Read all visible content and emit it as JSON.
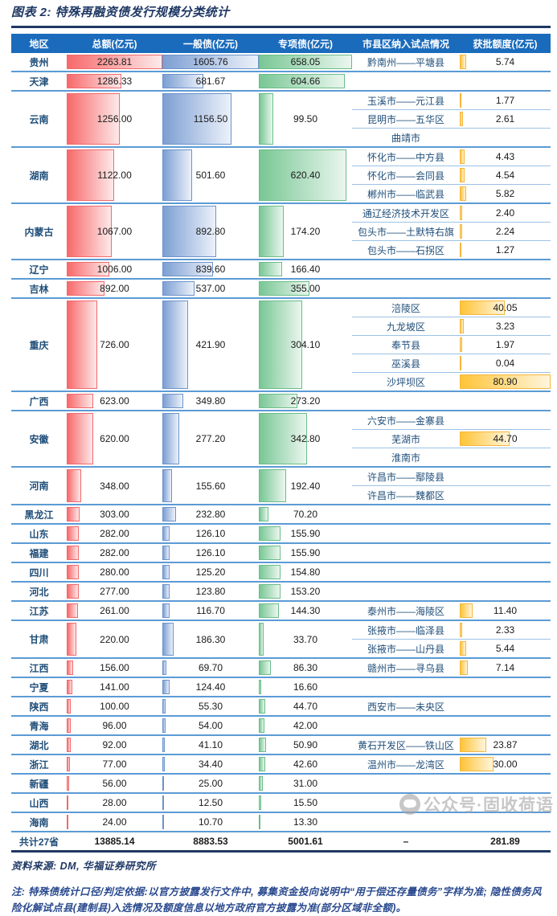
{
  "title": "图表 2: 特殊再融资债发行规模分类统计",
  "chart_data": {
    "type": "table",
    "title": "特殊再融资债发行规模分类统计",
    "columns": [
      "地区",
      "总额(亿元)",
      "一般债(亿元)",
      "专项债(亿元)",
      "市县区纳入试点情况",
      "获批额度(亿元)"
    ],
    "bar_scale_max": {
      "total": 2263.81,
      "general": 1605.76,
      "special": 658.05,
      "quota": 80.9
    },
    "rows": [
      {
        "region": "贵州",
        "total": 2263.81,
        "general": 1605.76,
        "special": 658.05,
        "pilots": [
          {
            "name": "黔南州——平塘县",
            "quota": 5.74
          }
        ]
      },
      {
        "region": "天津",
        "total": 1286.33,
        "general": 681.67,
        "special": 604.66,
        "pilots": []
      },
      {
        "region": "云南",
        "total": 1256.0,
        "general": 1156.5,
        "special": 99.5,
        "pilots": [
          {
            "name": "玉溪市——元江县",
            "quota": 1.77
          },
          {
            "name": "昆明市——五华区",
            "quota": 2.61
          },
          {
            "name": "曲靖市",
            "quota": null
          }
        ]
      },
      {
        "region": "湖南",
        "total": 1122.0,
        "general": 501.6,
        "special": 620.4,
        "pilots": [
          {
            "name": "怀化市——中方县",
            "quota": 4.43
          },
          {
            "name": "怀化市——会同县",
            "quota": 4.54
          },
          {
            "name": "郴州市——临武县",
            "quota": 5.82
          }
        ]
      },
      {
        "region": "内蒙古",
        "total": 1067.0,
        "general": 892.8,
        "special": 174.2,
        "pilots": [
          {
            "name": "通辽经济技术开发区",
            "quota": 2.4
          },
          {
            "name": "包头市——土默特右旗",
            "quota": 2.24
          },
          {
            "name": "包头市——石拐区",
            "quota": 1.27
          }
        ]
      },
      {
        "region": "辽宁",
        "total": 1006.0,
        "general": 839.6,
        "special": 166.4,
        "pilots": []
      },
      {
        "region": "吉林",
        "total": 892.0,
        "general": 537.0,
        "special": 355.0,
        "pilots": []
      },
      {
        "region": "重庆",
        "total": 726.0,
        "general": 421.9,
        "special": 304.1,
        "pilots": [
          {
            "name": "涪陵区",
            "quota": 40.05
          },
          {
            "name": "九龙坡区",
            "quota": 3.23
          },
          {
            "name": "奉节县",
            "quota": 1.97
          },
          {
            "name": "巫溪县",
            "quota": 0.04
          },
          {
            "name": "沙坪坝区",
            "quota": 80.9
          }
        ]
      },
      {
        "region": "广西",
        "total": 623.0,
        "general": 349.8,
        "special": 273.2,
        "pilots": []
      },
      {
        "region": "安徽",
        "total": 620.0,
        "general": 277.2,
        "special": 342.8,
        "pilots": [
          {
            "name": "六安市——金寨县",
            "quota": null
          },
          {
            "name": "芜湖市",
            "quota": 44.7
          },
          {
            "name": "淮南市",
            "quota": null
          }
        ]
      },
      {
        "region": "河南",
        "total": 348.0,
        "general": 155.6,
        "special": 192.4,
        "pilots": [
          {
            "name": "许昌市——鄢陵县",
            "quota": null
          },
          {
            "name": "许昌市——魏都区",
            "quota": null
          }
        ]
      },
      {
        "region": "黑龙江",
        "total": 303.0,
        "general": 232.8,
        "special": 70.2,
        "pilots": []
      },
      {
        "region": "山东",
        "total": 282.0,
        "general": 126.1,
        "special": 155.9,
        "pilots": []
      },
      {
        "region": "福建",
        "total": 282.0,
        "general": 126.1,
        "special": 155.9,
        "pilots": []
      },
      {
        "region": "四川",
        "total": 280.0,
        "general": 125.2,
        "special": 154.8,
        "pilots": []
      },
      {
        "region": "河北",
        "total": 277.0,
        "general": 123.8,
        "special": 153.2,
        "pilots": []
      },
      {
        "region": "江苏",
        "total": 261.0,
        "general": 116.7,
        "special": 144.3,
        "pilots": [
          {
            "name": "泰州市——海陵区",
            "quota": 11.4
          }
        ]
      },
      {
        "region": "甘肃",
        "total": 220.0,
        "general": 186.3,
        "special": 33.7,
        "pilots": [
          {
            "name": "张掖市——临泽县",
            "quota": 2.33
          },
          {
            "name": "张掖市——山丹县",
            "quota": 5.44
          }
        ]
      },
      {
        "region": "江西",
        "total": 156.0,
        "general": 69.7,
        "special": 86.3,
        "pilots": [
          {
            "name": "赣州市——寻乌县",
            "quota": 7.14
          }
        ]
      },
      {
        "region": "宁夏",
        "total": 141.0,
        "general": 124.4,
        "special": 16.6,
        "pilots": []
      },
      {
        "region": "陕西",
        "total": 100.0,
        "general": 55.3,
        "special": 44.7,
        "pilots": [
          {
            "name": "西安市——未央区",
            "quota": null
          }
        ]
      },
      {
        "region": "青海",
        "total": 96.0,
        "general": 54.0,
        "special": 42.0,
        "pilots": []
      },
      {
        "region": "湖北",
        "total": 92.0,
        "general": 41.1,
        "special": 50.9,
        "pilots": [
          {
            "name": "黄石开发区——铁山区",
            "quota": 23.87
          }
        ]
      },
      {
        "region": "浙江",
        "total": 77.0,
        "general": 34.4,
        "special": 42.6,
        "pilots": [
          {
            "name": "温州市——龙湾区",
            "quota": 30.0
          }
        ]
      },
      {
        "region": "新疆",
        "total": 56.0,
        "general": 25.0,
        "special": 31.0,
        "pilots": []
      },
      {
        "region": "山西",
        "total": 28.0,
        "general": 12.5,
        "special": 15.5,
        "pilots": []
      },
      {
        "region": "海南",
        "total": 24.0,
        "general": 10.7,
        "special": 13.3,
        "pilots": []
      }
    ],
    "total_row": {
      "region": "共计27省",
      "total": 13885.14,
      "general": 8883.53,
      "special": 5001.61,
      "pilot": "–",
      "quota": 281.89
    }
  },
  "footer": {
    "source": "资料来源: DM, 华福证券研究所",
    "note": "注: 特殊债统计口径/判定依据:以官方披露发行文件中, 募集资金投向说明中“用于偿还存量债务”字样为准; 隐性债务风险化解试点县(建制县)入选情况及额度信息以地方政府官方披露为准(部分区域非全额)。"
  },
  "watermark": {
    "text": "公众号·固收荷语"
  },
  "colors": {
    "title_navy": "#1f3864",
    "header_bg": "#1a6bbc",
    "region_text": "#1f4e79",
    "row_line": "#9dc3e6",
    "group_line": "#5b9bd5",
    "bar_red": "#f8696b",
    "bar_blue": "#7d9fd3",
    "bar_green": "#79c795",
    "bar_gold": "#ffc437"
  }
}
